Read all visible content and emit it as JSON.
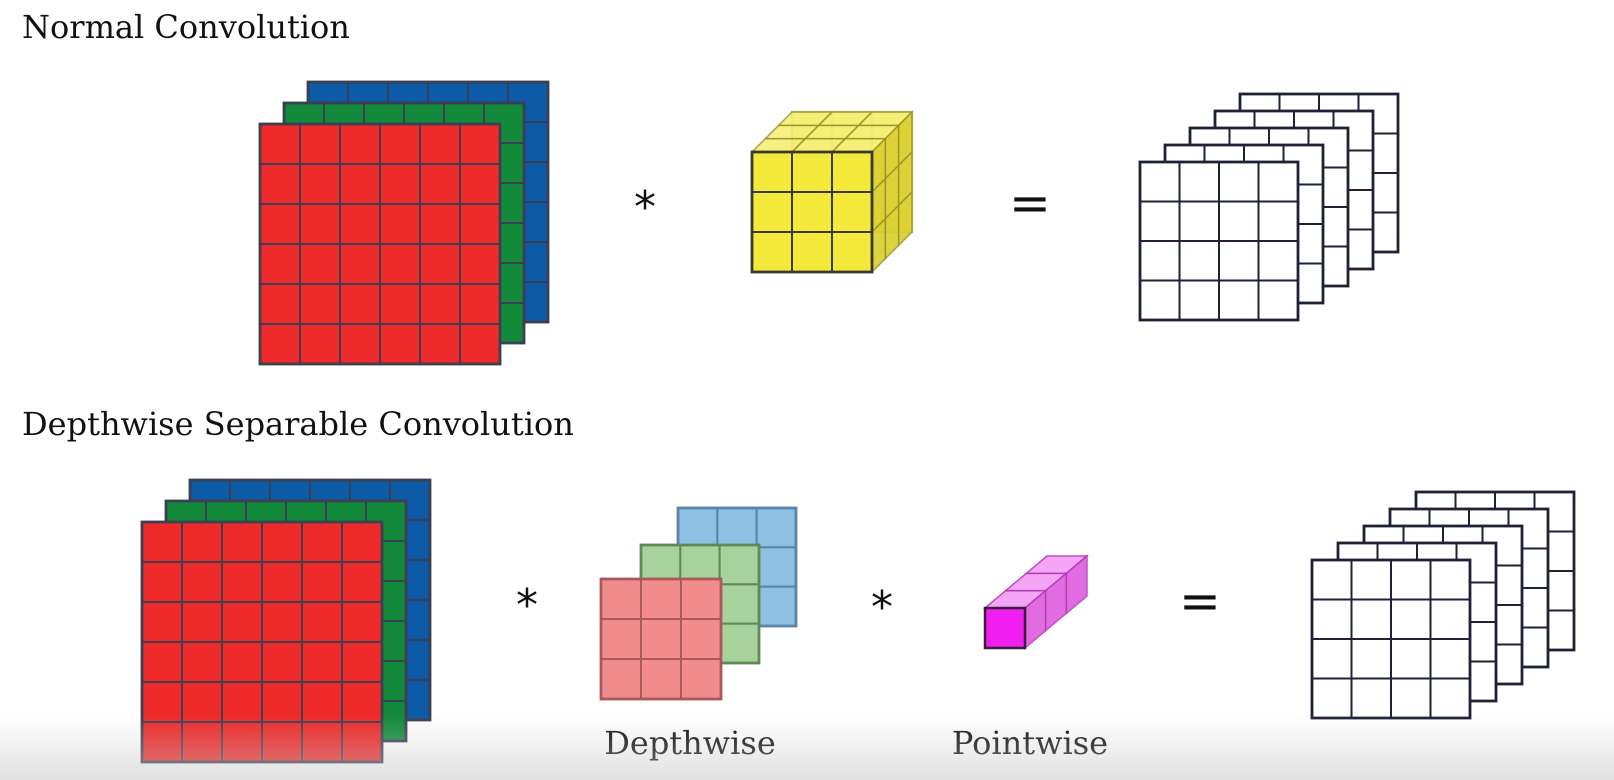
{
  "sections": {
    "normal": {
      "title": "Normal Convolution",
      "operator_multiply": "*",
      "operator_equals": "="
    },
    "separable": {
      "title": "Depthwise Separable Convolution",
      "operator_multiply_1": "*",
      "operator_multiply_2": "*",
      "operator_equals": "=",
      "depthwise_label": "Depthwise",
      "pointwise_label": "Pointwise"
    }
  },
  "colors": {
    "red": "#ee2a2a",
    "green": "#128a3a",
    "blue": "#0d5aa7",
    "yellow": "#f3ea3c",
    "pale_red": "#f28b8b",
    "pale_green": "#a8d29c",
    "pale_blue": "#8ec0e2",
    "magenta": "#f01ef0",
    "grid_line": "#3a3f52",
    "output_line": "#1e2236"
  },
  "grids": {
    "input_cells": 6,
    "kernel_cells": 3,
    "output_cells": 4,
    "input_channels": 3,
    "output_channels": 5
  }
}
